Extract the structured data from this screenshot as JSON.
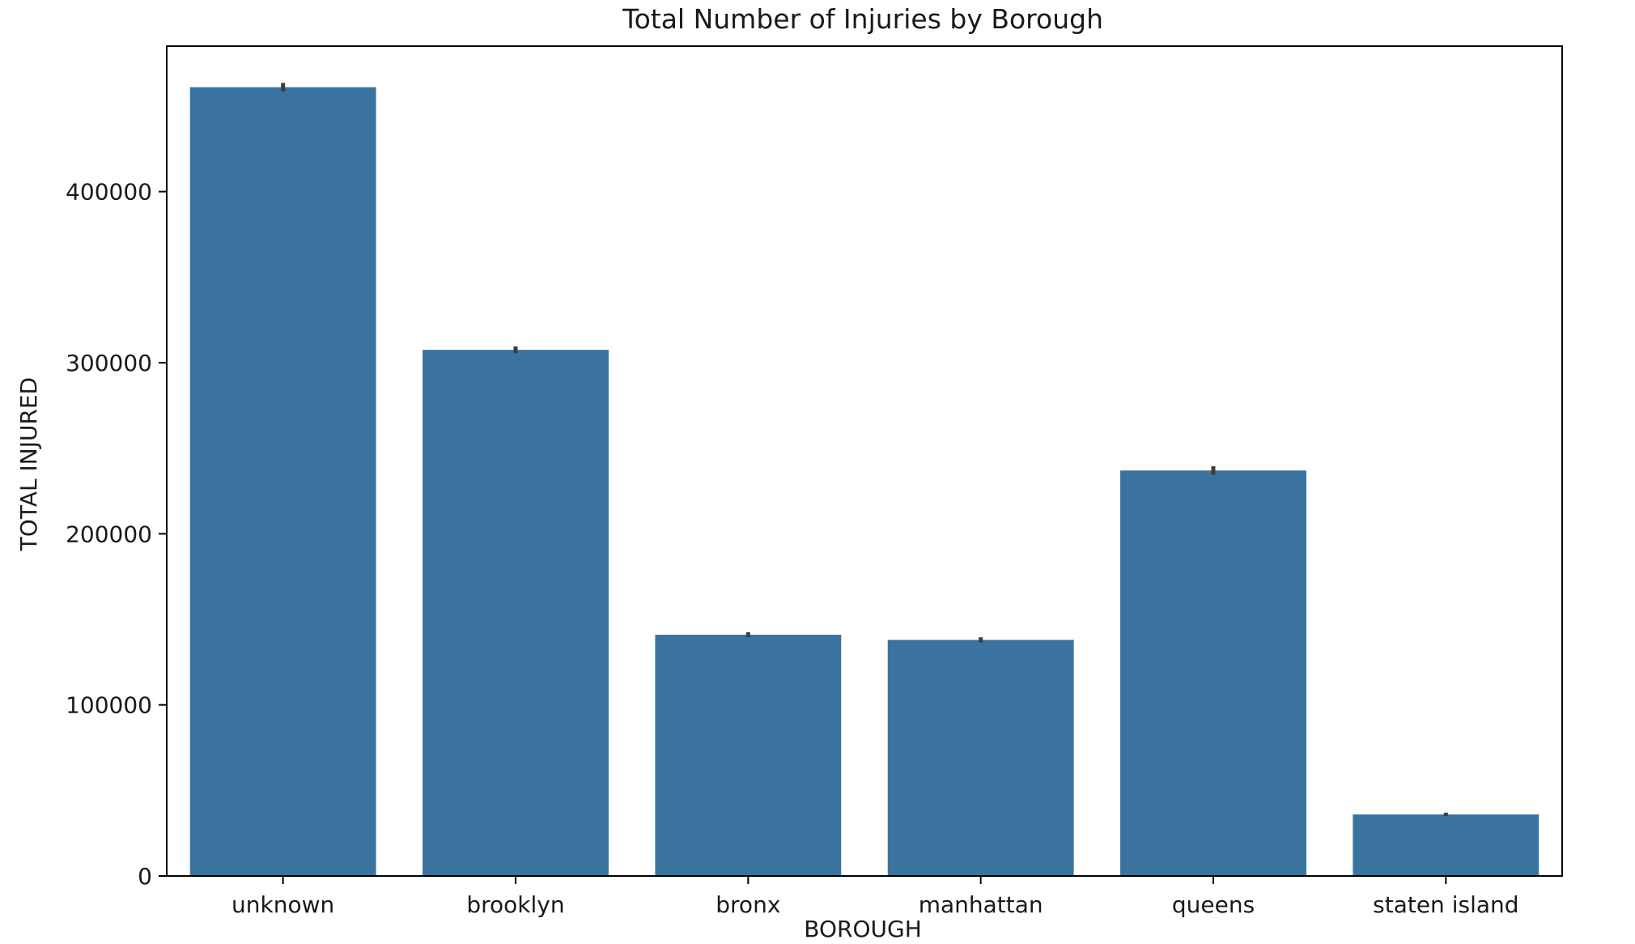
{
  "chart_data": {
    "type": "bar",
    "title": "Total Number of Injuries by Borough",
    "xlabel": "BOROUGH",
    "ylabel": "TOTAL INJURED",
    "categories": [
      "unknown",
      "brooklyn",
      "bronx",
      "manhattan",
      "queens",
      "staten island"
    ],
    "values": [
      461000,
      307500,
      141000,
      138000,
      237000,
      36000
    ],
    "error_bars": [
      [
        458500,
        463500
      ],
      [
        305500,
        309500
      ],
      [
        139500,
        142500
      ],
      [
        136500,
        139500
      ],
      [
        234500,
        239500
      ],
      [
        35000,
        37000
      ]
    ],
    "ylim": [
      0,
      485000
    ],
    "yticks": [
      0,
      100000,
      200000,
      300000,
      400000
    ],
    "ytick_labels": [
      "0",
      "100000",
      "200000",
      "300000",
      "400000"
    ],
    "grid": false,
    "colors": {
      "bar": "#3a73a0",
      "error_bar": "#3d3d3d",
      "axis": "#000000"
    }
  }
}
